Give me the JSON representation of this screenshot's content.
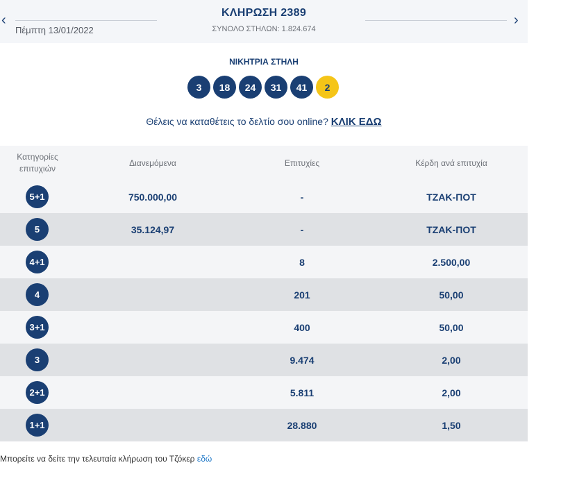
{
  "header": {
    "date": "Πέμπτη 13/01/2022",
    "draw_title": "ΚΛΗΡΩΣΗ 2389",
    "total_columns": "ΣΥΝΟΛΟ ΣΤΗΛΩΝ: 1.824.674",
    "prev_icon": "chevron-left-icon",
    "next_icon": "chevron-right-icon"
  },
  "winning": {
    "label": "ΝΙΚΗΤΡΙΑ ΣΤΗΛΗ",
    "numbers": [
      "3",
      "18",
      "24",
      "31",
      "41"
    ],
    "joker": "2"
  },
  "cta": {
    "text": "Θέλεις να καταθέτεις το δελτίο σου online?",
    "link": "ΚΛΙΚ ΕΔΩ"
  },
  "table": {
    "headers": {
      "category_line1": "Κατηγορίες",
      "category_line2": "επιτυχιών",
      "distributed": "Διανεμόμενα",
      "winners": "Επιτυχίες",
      "prize": "Κέρδη ανά επιτυχία"
    },
    "rows": [
      {
        "category": "5+1",
        "distributed": "750.000,00",
        "winners": "-",
        "prize": "ΤΖΑΚ-ΠΟΤ"
      },
      {
        "category": "5",
        "distributed": "35.124,97",
        "winners": "-",
        "prize": "ΤΖΑΚ-ΠΟΤ"
      },
      {
        "category": "4+1",
        "distributed": "",
        "winners": "8",
        "prize": "2.500,00"
      },
      {
        "category": "4",
        "distributed": "",
        "winners": "201",
        "prize": "50,00"
      },
      {
        "category": "3+1",
        "distributed": "",
        "winners": "400",
        "prize": "50,00"
      },
      {
        "category": "3",
        "distributed": "",
        "winners": "9.474",
        "prize": "2,00"
      },
      {
        "category": "2+1",
        "distributed": "",
        "winners": "5.811",
        "prize": "2,00"
      },
      {
        "category": "1+1",
        "distributed": "",
        "winners": "28.880",
        "prize": "1,50"
      }
    ]
  },
  "footer": {
    "text": "Μπορείτε να δείτε την τελευταία κλήρωση του Τζόκερ ",
    "link": "εδώ"
  }
}
